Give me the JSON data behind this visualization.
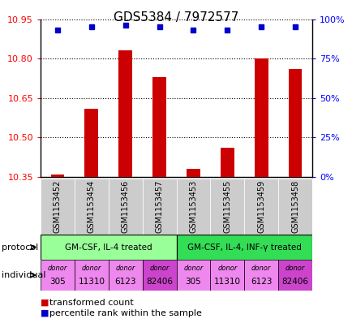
{
  "title": "GDS5384 / 7972577",
  "samples": [
    "GSM1153452",
    "GSM1153454",
    "GSM1153456",
    "GSM1153457",
    "GSM1153453",
    "GSM1153455",
    "GSM1153459",
    "GSM1153458"
  ],
  "transformed_counts": [
    10.36,
    10.61,
    10.83,
    10.73,
    10.38,
    10.46,
    10.8,
    10.76
  ],
  "percentile_ranks": [
    93,
    95,
    96,
    95,
    93,
    93,
    95,
    95
  ],
  "ylim_left": [
    10.35,
    10.95
  ],
  "yticks_left": [
    10.35,
    10.5,
    10.65,
    10.8,
    10.95
  ],
  "ylim_right": [
    0,
    100
  ],
  "yticks_right": [
    0,
    25,
    50,
    75,
    100
  ],
  "bar_color": "#cc0000",
  "dot_color": "#0000cc",
  "bar_baseline": 10.35,
  "protocol_groups": [
    {
      "label": "GM-CSF, IL-4 treated",
      "start": 0,
      "end": 4,
      "color": "#99ff99"
    },
    {
      "label": "GM-CSF, IL-4, INF-γ treated",
      "start": 4,
      "end": 8,
      "color": "#33dd55"
    }
  ],
  "individuals": [
    "305",
    "11310",
    "6123",
    "82406",
    "305",
    "11310",
    "6123",
    "82406"
  ],
  "individual_colors": [
    "#ee88ee",
    "#ee88ee",
    "#ee88ee",
    "#cc44cc",
    "#ee88ee",
    "#ee88ee",
    "#ee88ee",
    "#cc44cc"
  ],
  "sample_bg_color": "#cccccc",
  "legend_red_label": "transformed count",
  "legend_blue_label": "percentile rank within the sample",
  "protocol_label": "protocol",
  "individual_label": "individual",
  "fig_width": 4.35,
  "fig_height": 3.93,
  "dpi": 100
}
